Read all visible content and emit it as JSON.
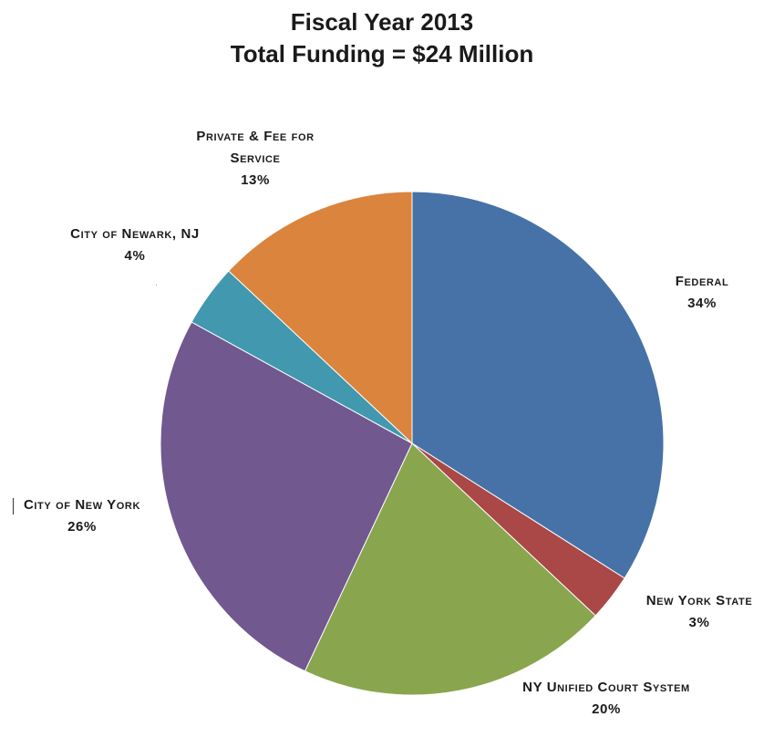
{
  "chart_data": {
    "type": "pie",
    "title": "Fiscal Year 2013",
    "subtitle": "Total Funding = $24 Million",
    "slices": [
      {
        "label": "Federal",
        "value": 34,
        "value_label": "34%",
        "color": "#4672a8"
      },
      {
        "label": "New York State",
        "value": 3,
        "value_label": "3%",
        "color": "#a94846"
      },
      {
        "label": "NY Unified Court System",
        "value": 20,
        "value_label": "20%",
        "color": "#89a54e"
      },
      {
        "label": "City of New York",
        "value": 26,
        "value_label": "26%",
        "color": "#71588f"
      },
      {
        "label": "City of Newark, NJ",
        "value": 4,
        "value_label": "4%",
        "color": "#4198af"
      },
      {
        "label": "Private & Fee for Service",
        "value": 13,
        "value_label": "13%",
        "color": "#db843d"
      }
    ],
    "start_angle": "12 o'clock",
    "direction": "clockwise"
  }
}
